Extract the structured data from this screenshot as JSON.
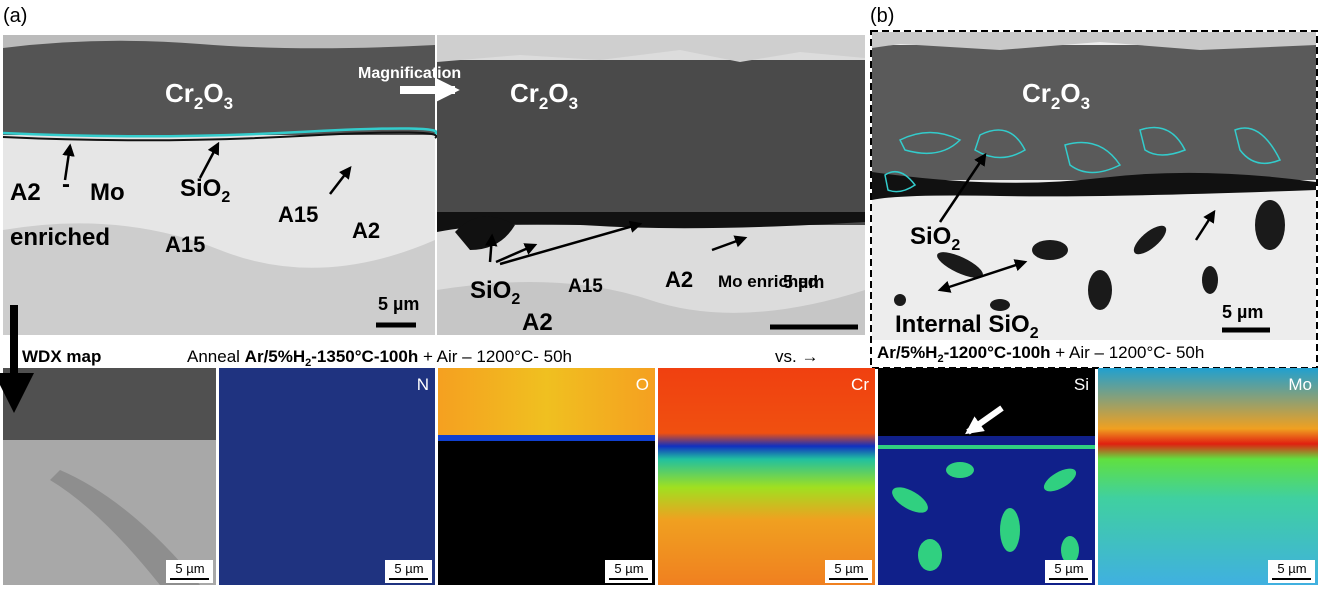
{
  "figure": {
    "panel_a_label": "(a)",
    "panel_b_label": "(b)",
    "magnification": "Magnification",
    "wdx": "WDX map",
    "top_images": [
      {
        "labels": [
          [
            "Cr",
            "2",
            "O",
            "3"
          ],
          [
            "A2"
          ],
          [
            "-"
          ],
          [
            "Mo"
          ],
          [
            "enriched"
          ],
          [
            "SiO",
            "2"
          ],
          [
            "A15"
          ],
          [
            "A15"
          ],
          [
            "A2"
          ]
        ],
        "scale": "5 µm"
      },
      {
        "labels": [
          [
            "Cr",
            "2",
            "O",
            "3"
          ],
          [
            "SiO",
            "2"
          ],
          [
            "A15"
          ],
          [
            "A2"
          ],
          [
            "A2"
          ],
          [
            "Mo enriched"
          ]
        ],
        "scale": "5 µm"
      },
      {
        "labels": [
          [
            "Cr",
            "2",
            "O",
            "3"
          ],
          [
            "SiO",
            "2"
          ],
          [
            "Internal SiO",
            "2"
          ]
        ],
        "scale": "5 µm"
      }
    ],
    "caption_a": {
      "prefix": "Anneal",
      "bold": [
        "Ar/5%H",
        "2",
        "-1350°C-100h"
      ],
      "suffix": "+ Air – 1200°C- 50h",
      "vs": "vs. →"
    },
    "caption_b": {
      "bold": [
        "Ar/5%H",
        "2",
        "-1200°C-100h"
      ],
      "suffix": "+ Air – 1200°C- 50h"
    },
    "maps": [
      {
        "scale": "5 µm"
      },
      {
        "element": "N",
        "scale": "5 µm"
      },
      {
        "element": "O",
        "scale": "5 µm"
      },
      {
        "element": "Cr",
        "scale": "5 µm"
      },
      {
        "element": "Si",
        "scale": "5 µm"
      },
      {
        "element": "Mo",
        "scale": "5 µm"
      }
    ]
  }
}
